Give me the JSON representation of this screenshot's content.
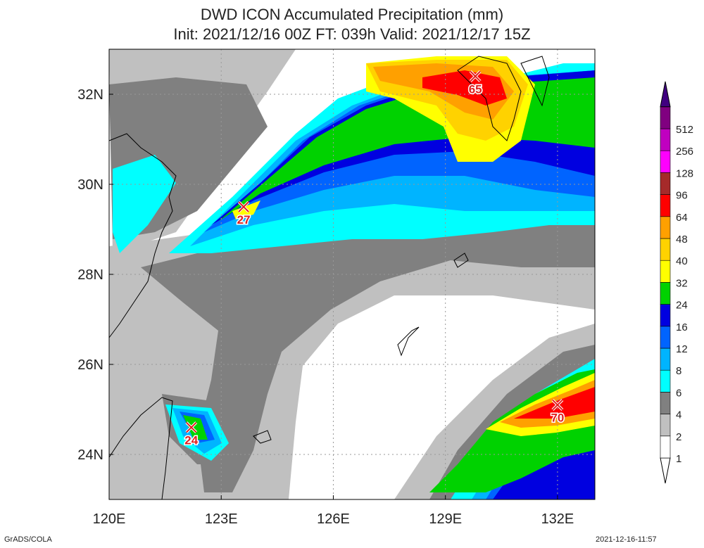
{
  "title": "DWD ICON Accumulated Precipitation (mm)",
  "subtitle": "Init: 2021/12/16 00Z  FT: 039h  Valid: 2021/12/17 15Z",
  "credit_left": "GrADS/COLA",
  "credit_right": "2021-12-16-11:57",
  "map": {
    "lon_range": [
      120,
      133
    ],
    "lat_range": [
      23,
      33
    ],
    "lon_ticks": [
      {
        "value": 120,
        "label": "120E"
      },
      {
        "value": 123,
        "label": "123E"
      },
      {
        "value": 126,
        "label": "126E"
      },
      {
        "value": 129,
        "label": "129E"
      },
      {
        "value": 132,
        "label": "132E"
      }
    ],
    "lat_ticks": [
      {
        "value": 24,
        "label": "24N"
      },
      {
        "value": 26,
        "label": "26N"
      },
      {
        "value": 28,
        "label": "28N"
      },
      {
        "value": 30,
        "label": "30N"
      },
      {
        "value": 32,
        "label": "32N"
      }
    ],
    "maxima": [
      {
        "lon": 129.8,
        "lat": 32.4,
        "label": "65"
      },
      {
        "lon": 123.6,
        "lat": 29.5,
        "label": "27"
      },
      {
        "lon": 122.2,
        "lat": 24.6,
        "label": "24"
      },
      {
        "lon": 132.0,
        "lat": 25.1,
        "label": "70"
      }
    ]
  },
  "colorbar": {
    "levels": [
      {
        "label": "1",
        "color": "#ffffff"
      },
      {
        "label": "2",
        "color": "#c0c0c0"
      },
      {
        "label": "4",
        "color": "#808080"
      },
      {
        "label": "6",
        "color": "#00ffff"
      },
      {
        "label": "8",
        "color": "#00b4ff"
      },
      {
        "label": "12",
        "color": "#0064ff"
      },
      {
        "label": "16",
        "color": "#0000e0"
      },
      {
        "label": "24",
        "color": "#00d200"
      },
      {
        "label": "32",
        "color": "#ffff00"
      },
      {
        "label": "40",
        "color": "#ffd200"
      },
      {
        "label": "48",
        "color": "#ffa000"
      },
      {
        "label": "64",
        "color": "#ff0000"
      },
      {
        "label": "96",
        "color": "#a52a2a"
      },
      {
        "label": "128",
        "color": "#ff00ff"
      },
      {
        "label": "256",
        "color": "#c000c0"
      },
      {
        "label": "512",
        "color": "#800080"
      }
    ],
    "top_color": "#400080"
  }
}
